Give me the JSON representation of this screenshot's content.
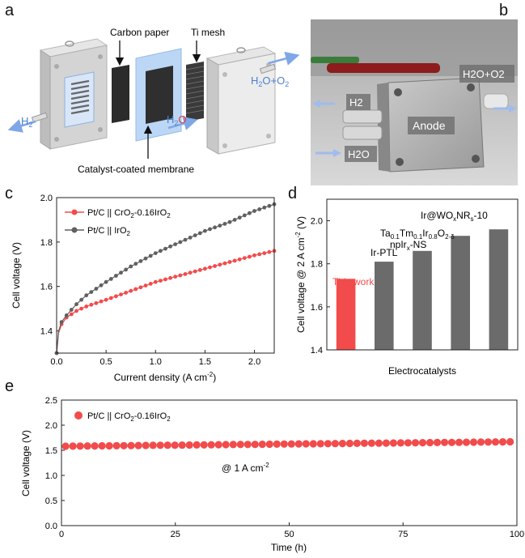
{
  "panels": {
    "a": "a",
    "b": "b",
    "c": "c",
    "d": "d",
    "e": "e"
  },
  "schematic": {
    "carbon_paper": "Carbon paper",
    "ti_mesh": "Ti mesh",
    "ccm": "Catalyst-coated membrane",
    "h2": "H",
    "h2_sub": "2",
    "h2o_in": "H",
    "h2o_in_sub": "2",
    "h2o_in_tail": "O",
    "h2o_o2": "H",
    "h2o_o2_sub": "2",
    "h2o_o2_mid": "O+O",
    "h2o_o2_sub2": "2"
  },
  "photo": {
    "h2o_o2": "H2O+O2",
    "h2": "H2",
    "anode": "Anode",
    "h2o": "H2O"
  },
  "colors": {
    "red": "#f24b4b",
    "gray": "#606060",
    "bar_gray": "#6b6b6b",
    "blue": "#7fa7e8"
  },
  "chart_data": [
    {
      "id": "c",
      "type": "line",
      "xlabel": "Current density (A cm",
      "xlabel_sup": "-2",
      "xlabel_tail": ")",
      "ylabel": "Cell voltage (V)",
      "xlim": [
        0,
        2.2
      ],
      "ylim": [
        1.3,
        2.0
      ],
      "xticks": [
        "0.0",
        "0.5",
        "1.0",
        "1.5",
        "2.0"
      ],
      "yticks": [
        "1.4",
        "1.6",
        "1.8",
        "2.0"
      ],
      "legend": [
        "Pt/C || CrO2-0.16IrO2",
        "Pt/C || IrO2"
      ],
      "series": [
        {
          "name": "Pt/C || CrO2-0.16IrO2",
          "color": "#f24b4b",
          "x": [
            0.0,
            0.02,
            0.05,
            0.1,
            0.2,
            0.3,
            0.5,
            0.75,
            1.0,
            1.25,
            1.5,
            1.75,
            2.0,
            2.2
          ],
          "y": [
            1.3,
            1.39,
            1.43,
            1.46,
            1.49,
            1.51,
            1.54,
            1.58,
            1.62,
            1.65,
            1.68,
            1.71,
            1.74,
            1.76
          ]
        },
        {
          "name": "Pt/C || IrO2",
          "color": "#606060",
          "x": [
            0.0,
            0.02,
            0.05,
            0.1,
            0.2,
            0.3,
            0.5,
            0.75,
            1.0,
            1.25,
            1.5,
            1.75,
            2.0,
            2.2
          ],
          "y": [
            1.3,
            1.4,
            1.44,
            1.47,
            1.52,
            1.56,
            1.62,
            1.69,
            1.75,
            1.8,
            1.85,
            1.89,
            1.94,
            1.97
          ]
        }
      ]
    },
    {
      "id": "d",
      "type": "bar",
      "xlabel": "Electrocatalysts",
      "ylabel": "Cell voltage @ 2 A cm",
      "ylabel_sup": "-2",
      "ylabel_tail": " (V)",
      "ylim": [
        1.4,
        2.1
      ],
      "yticks": [
        "1.4",
        "1.6",
        "1.8",
        "2.0"
      ],
      "categories": [
        "This work",
        "Ir-PTL",
        "npIrx-NS",
        "Ta0.1Tm0.1Ir0.8O2-δ",
        "Ir@WOxNRs-10"
      ],
      "values": [
        1.73,
        1.81,
        1.86,
        1.93,
        1.96
      ],
      "label_this_work": "This work",
      "label_ir_ptl": "Ir-PTL",
      "label_npirx": "npIr",
      "label_npirx_sub": "x",
      "label_npirx_tail": "-NS",
      "label_tatm_ta": "Ta",
      "label_tatm_s1": "0.1",
      "label_tatm_tm": "Tm",
      "label_tatm_s2": "0.1",
      "label_tatm_ir": "Ir",
      "label_tatm_s3": "0.8",
      "label_tatm_o": "O",
      "label_tatm_s4": "2-δ",
      "label_irwo_a": "Ir@WO",
      "label_irwo_s1": "x",
      "label_irwo_b": "NR",
      "label_irwo_s2": "s",
      "label_irwo_c": "-10"
    },
    {
      "id": "e",
      "type": "scatter",
      "xlabel": "Time (h)",
      "ylabel": "Cell voltage (V)",
      "xlim": [
        0,
        100
      ],
      "ylim": [
        0.0,
        2.5
      ],
      "xticks": [
        "0",
        "25",
        "50",
        "75",
        "100"
      ],
      "yticks": [
        "0.0",
        "0.5",
        "1.0",
        "1.5",
        "2.0",
        "2.5"
      ],
      "legend": "Pt/C || CrO2-0.16IrO2",
      "annotation": "@ 1 A cm",
      "annotation_sup": "-2",
      "series": [
        {
          "name": "Pt/C || CrO2-0.16IrO2",
          "color": "#f24b4b",
          "x_start": 0,
          "x_end": 100,
          "y_start": 1.58,
          "y_end": 1.67
        }
      ]
    }
  ]
}
